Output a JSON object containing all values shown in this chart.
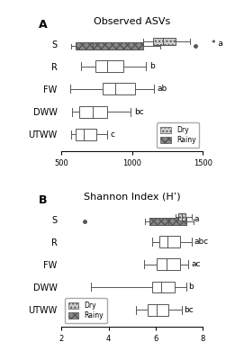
{
  "panel_A": {
    "title": "Observed ASVs",
    "xlim": [
      500,
      1500
    ],
    "xticks": [
      500,
      1000,
      1500
    ],
    "categories": [
      "S",
      "R",
      "FW",
      "DWW",
      "UTWW"
    ],
    "sig_labels": [
      "* a",
      "b",
      "ab",
      "bc",
      "c"
    ],
    "boxes": [
      {
        "label": "S",
        "has_both": true,
        "dry": {
          "whislo": 1080,
          "q1": 1150,
          "med": 1220,
          "q3": 1310,
          "whishi": 1410,
          "fliers": []
        },
        "rainy": {
          "whislo": 570,
          "q1": 600,
          "med": 720,
          "q3": 1080,
          "whishi": 1200,
          "fliers": [
            1450
          ]
        }
      },
      {
        "label": "R",
        "has_both": false,
        "combined": {
          "whislo": 640,
          "q1": 740,
          "med": 820,
          "q3": 940,
          "whishi": 1100,
          "fliers": []
        }
      },
      {
        "label": "FW",
        "has_both": false,
        "combined": {
          "whislo": 560,
          "q1": 790,
          "med": 880,
          "q3": 1020,
          "whishi": 1155,
          "fliers": []
        }
      },
      {
        "label": "DWW",
        "has_both": false,
        "combined": {
          "whislo": 575,
          "q1": 625,
          "med": 720,
          "q3": 820,
          "whishi": 990,
          "fliers": []
        }
      },
      {
        "label": "UTWW",
        "has_both": false,
        "combined": {
          "whislo": 565,
          "q1": 600,
          "med": 660,
          "q3": 745,
          "whishi": 820,
          "fliers": []
        }
      }
    ]
  },
  "panel_B": {
    "title": "Shannon Index (H’)",
    "xlim": [
      2,
      8
    ],
    "xticks": [
      2,
      4,
      6,
      8
    ],
    "categories": [
      "S",
      "R",
      "FW",
      "DWW",
      "UTWW"
    ],
    "sig_labels": [
      "a",
      "abc",
      "ac",
      "b",
      "bc"
    ],
    "boxes": [
      {
        "label": "S",
        "has_both": true,
        "dry": {
          "whislo": 6.85,
          "q1": 6.95,
          "med": 7.1,
          "q3": 7.25,
          "whishi": 7.55,
          "fliers": []
        },
        "rainy": {
          "whislo": 5.55,
          "q1": 5.75,
          "med": 6.55,
          "q3": 7.3,
          "whishi": 7.6,
          "fliers": [
            3.0
          ]
        }
      },
      {
        "label": "R",
        "has_both": false,
        "combined": {
          "whislo": 5.85,
          "q1": 6.15,
          "med": 6.5,
          "q3": 7.05,
          "whishi": 7.55,
          "fliers": []
        }
      },
      {
        "label": "FW",
        "has_both": false,
        "combined": {
          "whislo": 5.5,
          "q1": 6.05,
          "med": 6.45,
          "q3": 7.05,
          "whishi": 7.4,
          "fliers": []
        }
      },
      {
        "label": "DWW",
        "has_both": false,
        "combined": {
          "whislo": 3.25,
          "q1": 5.85,
          "med": 6.25,
          "q3": 6.8,
          "whishi": 7.3,
          "fliers": []
        }
      },
      {
        "label": "UTWW",
        "has_both": false,
        "combined": {
          "whislo": 5.15,
          "q1": 5.65,
          "med": 6.05,
          "q3": 6.55,
          "whishi": 7.1,
          "fliers": []
        }
      }
    ]
  },
  "dry_facecolor": "#cccccc",
  "dry_hatch": "....",
  "rainy_facecolor": "#888888",
  "rainy_hatch": "xxxx",
  "box_edgecolor": "#555555",
  "lw": 0.7
}
